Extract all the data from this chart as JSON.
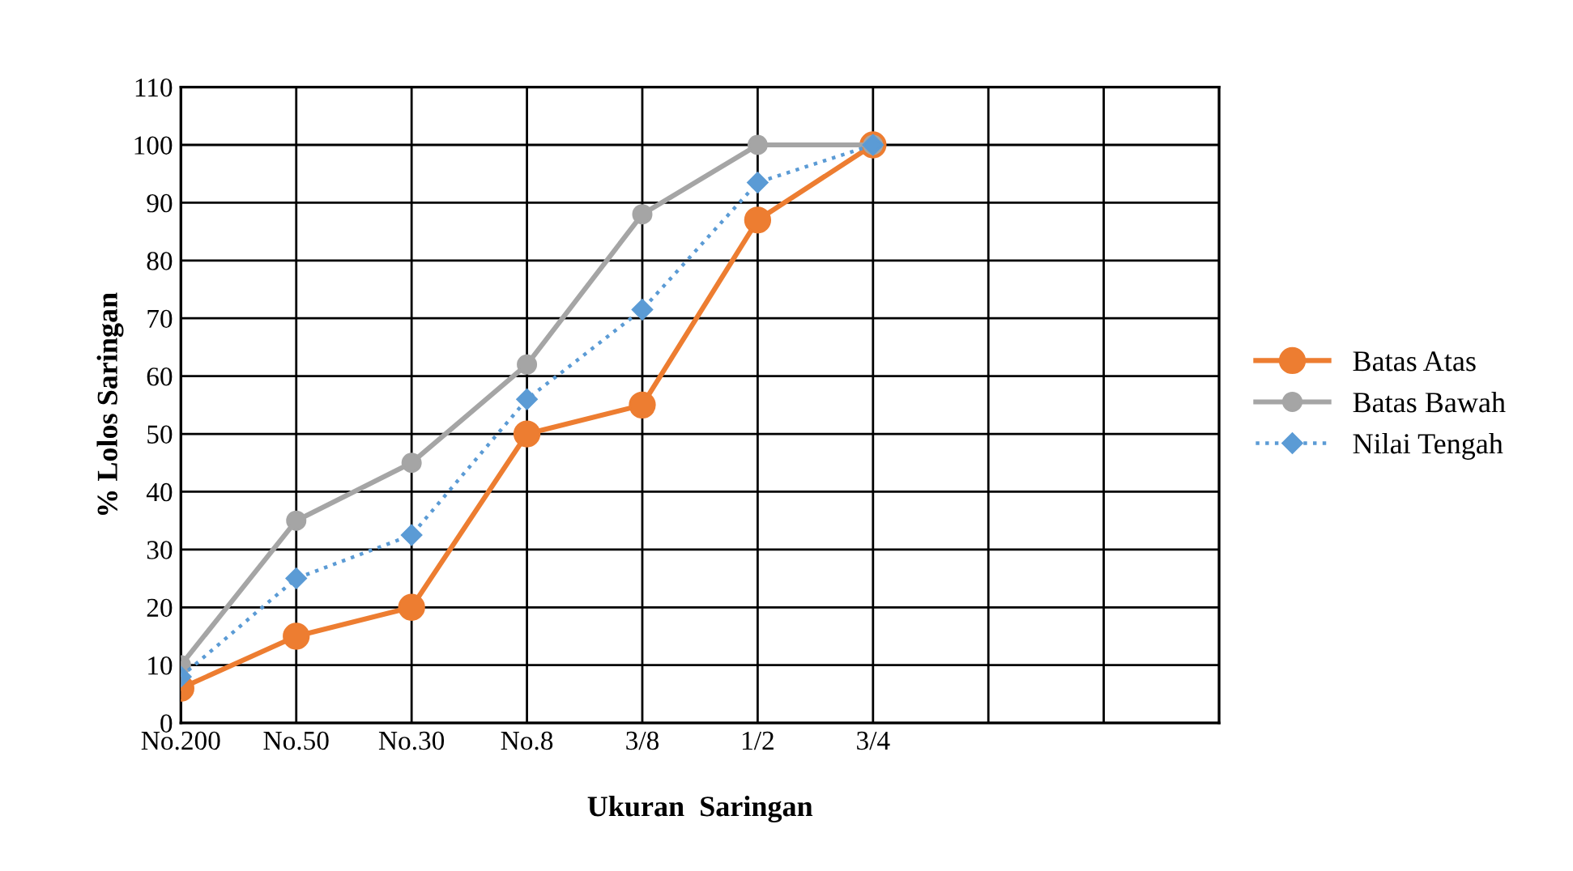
{
  "chart_data": {
    "type": "line",
    "xlabel": "Ukuran  Saringan",
    "ylabel": "% Lolos Saringan",
    "categories": [
      "No.200",
      "No.50",
      "No.30",
      "No.8",
      "3/8",
      "1/2",
      "3/4",
      null,
      null
    ],
    "ylim": [
      0,
      110
    ],
    "yticks": [
      0,
      10,
      20,
      30,
      40,
      50,
      60,
      70,
      80,
      90,
      100,
      110
    ],
    "grid": true,
    "legend": "right",
    "series": [
      {
        "name": "Batas Atas",
        "color": "#ed7d31",
        "marker": "circle",
        "line_style": "solid",
        "values": [
          6,
          15,
          20,
          50,
          55,
          87,
          100,
          null,
          null
        ]
      },
      {
        "name": "Batas Bawah",
        "color": "#a5a5a5",
        "marker": "circle",
        "line_style": "solid",
        "values": [
          10,
          35,
          45,
          62,
          88,
          100,
          100,
          null,
          null
        ]
      },
      {
        "name": "Nilai Tengah",
        "color": "#5b9bd5",
        "marker": "diamond",
        "line_style": "dotted",
        "values": [
          8,
          25,
          32.5,
          56,
          71.5,
          93.5,
          100,
          null,
          null
        ]
      }
    ]
  }
}
